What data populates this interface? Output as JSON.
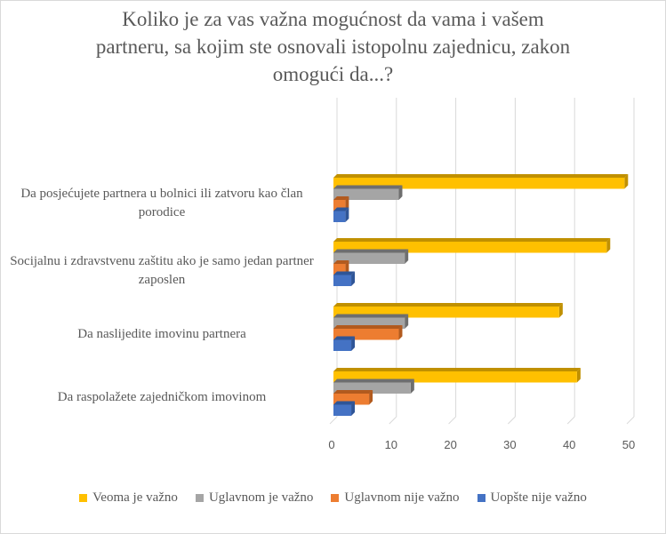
{
  "chart_data": {
    "type": "bar",
    "orientation": "horizontal",
    "title": "Koliko  je za vas važna mogućnost da vama i vašem partneru, sa kojim ste osnovali istopolnu zajednicu, zakon omogući da...?",
    "title_lines": [
      "Koliko  je za vas važna mogućnost da vama i vašem",
      "partneru, sa kojim ste osnovali istopolnu zajednicu, zakon",
      "omogući da...?"
    ],
    "categories": [
      "Da posjećujete partnera u bolnici ili zatvoru kao član porodice",
      "Socijalnu i zdravstvenu zaštitu ako je samo jedan partner zaposlen",
      "Da naslijedite imovinu partnera",
      "Da raspolažete zajedničkom imovinom"
    ],
    "series": [
      {
        "name": "Veoma je važno",
        "color": "#FFC000",
        "side": "#C09000",
        "values": [
          49,
          46,
          38,
          41
        ]
      },
      {
        "name": "Uglavnom je važno",
        "color": "#A5A5A5",
        "side": "#6E6E6E",
        "values": [
          11,
          12,
          12,
          13
        ]
      },
      {
        "name": "Uglavnom nije važno",
        "color": "#ED7D31",
        "side": "#B25A1E",
        "values": [
          2,
          2,
          11,
          6
        ]
      },
      {
        "name": "Uopšte nije važno",
        "color": "#4472C4",
        "side": "#2F5597",
        "values": [
          2,
          3,
          3,
          3
        ]
      }
    ],
    "xlim": [
      0,
      50
    ],
    "xticks": [
      "0",
      "10",
      "20",
      "30",
      "40",
      "50"
    ],
    "grid": true,
    "legend": "bottom"
  }
}
